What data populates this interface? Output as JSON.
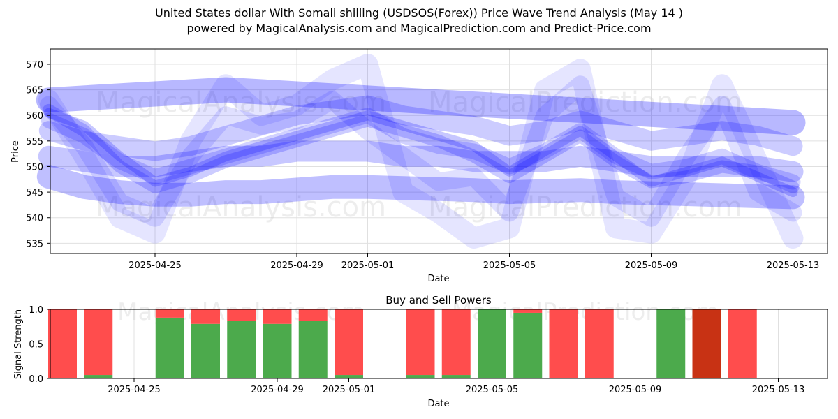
{
  "title_line1": "United States dollar With Somali shilling (USDSOS(Forex)) Price Wave Trend Analysis (May 14 )",
  "title_line2": "powered by MagicalAnalysis.com and MagicalPrediction.com and Predict-Price.com",
  "watermarks": [
    "MagicalAnalysis.com",
    "MagicalPrediction.com"
  ],
  "colors": {
    "wave": "#0000ff",
    "buy": "#4caa4c",
    "sell": "#ff4d4d",
    "strong_sell": "#c83214",
    "grid": "#e0e0e0"
  },
  "chart_data": [
    {
      "type": "line",
      "xlabel": "Date",
      "ylabel": "Price",
      "ylim": [
        533,
        573
      ],
      "yticks": [
        535,
        540,
        545,
        550,
        555,
        560,
        565,
        570
      ],
      "xtick_labels": [
        "2025-04-25",
        "2025-04-29",
        "2025-05-01",
        "2025-05-05",
        "2025-05-09",
        "2025-05-13"
      ],
      "x_dates": [
        "2025-04-22",
        "2025-04-23",
        "2025-04-24",
        "2025-04-25",
        "2025-04-26",
        "2025-04-27",
        "2025-04-28",
        "2025-04-29",
        "2025-04-30",
        "2025-05-01",
        "2025-05-02",
        "2025-05-03",
        "2025-05-04",
        "2025-05-05",
        "2025-05-06",
        "2025-05-07",
        "2025-05-08",
        "2025-05-09",
        "2025-05-10",
        "2025-05-11",
        "2025-05-12",
        "2025-05-13"
      ],
      "grid": true,
      "series": [
        {
          "values": [
            560.5,
            558,
            552,
            547,
            549,
            552,
            554,
            556,
            558,
            560,
            558,
            556,
            554,
            549,
            553,
            557,
            552,
            547,
            549,
            551,
            548,
            545
          ]
        },
        {
          "values": [
            561,
            557,
            550,
            546,
            548,
            551,
            553,
            555,
            557,
            559,
            557,
            555,
            552,
            548,
            552,
            556,
            551,
            547,
            548,
            550,
            549,
            546
          ]
        },
        {
          "values": [
            559,
            556,
            551,
            548,
            550,
            552,
            554,
            556,
            558,
            560,
            556,
            554,
            553,
            550,
            553,
            557,
            552,
            549,
            550,
            552,
            549,
            547
          ]
        },
        {
          "values": [
            562,
            554,
            543,
            540,
            552,
            560,
            558,
            559,
            563,
            557,
            552,
            547,
            548,
            541,
            560,
            566,
            544,
            540,
            552,
            562,
            545,
            541
          ]
        },
        {
          "values": [
            563,
            552,
            540,
            537,
            555,
            566,
            560,
            562,
            567,
            570,
            545,
            541,
            536,
            538,
            565,
            569,
            538,
            537,
            548,
            566,
            551,
            536
          ]
        },
        {
          "values": [
            563,
            563.4,
            563.8,
            564.2,
            564.6,
            565,
            564.6,
            564.2,
            563.8,
            563.4,
            563.0,
            562.6,
            562.2,
            561.8,
            561.4,
            561.0,
            560.6,
            560.2,
            559.8,
            559.4,
            559.0,
            558.6
          ]
        },
        {
          "values": [
            557,
            555,
            554,
            553,
            554,
            556,
            558,
            560,
            561,
            562,
            560,
            559,
            558,
            556,
            557,
            559,
            557,
            555,
            556,
            557,
            556,
            554
          ]
        },
        {
          "values": [
            552,
            551,
            550,
            550,
            551,
            552,
            552,
            553,
            553,
            553,
            552,
            552,
            551,
            551,
            551,
            552,
            551,
            550,
            550,
            550,
            550,
            549
          ]
        },
        {
          "values": [
            548,
            546,
            545,
            544.5,
            544.5,
            545,
            545,
            545.5,
            546,
            546,
            545.8,
            545.6,
            545.4,
            545,
            545.2,
            545.4,
            545,
            544.8,
            544.6,
            544.4,
            544.2,
            544
          ]
        }
      ]
    },
    {
      "type": "bar",
      "title": "Buy and Sell Powers",
      "xlabel": "Date",
      "ylabel": "Signal Strength",
      "ylim": [
        0,
        1
      ],
      "yticks": [
        "0.0",
        "0.5",
        "1.0"
      ],
      "xtick_labels": [
        "2025-04-25",
        "2025-04-29",
        "2025-05-01",
        "2025-05-05",
        "2025-05-09",
        "2025-05-13"
      ],
      "categories": [
        "2025-04-23",
        "2025-04-24",
        "2025-04-26",
        "2025-04-27",
        "2025-04-28",
        "2025-04-29",
        "2025-04-30",
        "2025-05-01",
        "2025-05-03",
        "2025-05-04",
        "2025-05-05",
        "2025-05-06",
        "2025-05-07",
        "2025-05-08",
        "2025-05-10",
        "2025-05-11",
        "2025-05-12"
      ],
      "series": [
        {
          "name": "Buy",
          "values": [
            0.0,
            0.05,
            0.88,
            0.79,
            0.83,
            0.79,
            0.83,
            0.05,
            0.05,
            0.05,
            1.0,
            0.95,
            0.0,
            0.0,
            1.0,
            0.0,
            0.0
          ]
        },
        {
          "name": "Sell",
          "values": [
            1.0,
            0.95,
            0.12,
            0.21,
            0.17,
            0.21,
            0.17,
            0.95,
            0.95,
            0.95,
            0.0,
            0.05,
            1.0,
            1.0,
            0.0,
            1.0,
            1.0
          ]
        }
      ],
      "strong_sell_index": 15
    }
  ]
}
